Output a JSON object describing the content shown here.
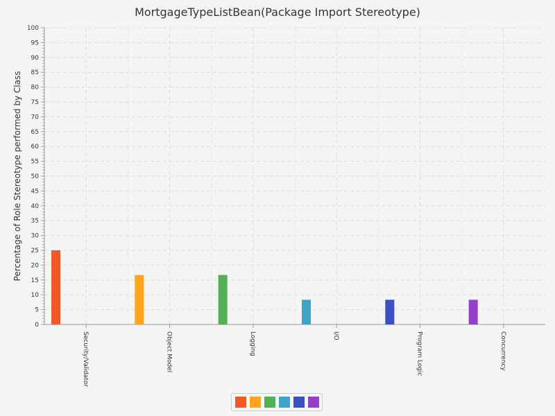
{
  "chart_data": {
    "type": "bar",
    "title": "MortgageTypeListBean(Package Import Stereotype)",
    "xlabel": "",
    "ylabel": "Percentage of Role Stereotype performed by Class",
    "ylim": [
      0,
      100
    ],
    "ytick_step": 5,
    "grid": true,
    "legend_position": "bottom",
    "categories": [
      "Security/Validator",
      "Object Model",
      "Logging",
      "I/O",
      "Program Logic",
      "Concurrency"
    ],
    "values": [
      25,
      16.67,
      16.67,
      8.33,
      8.33,
      8.33
    ],
    "colors": [
      "#f05a28",
      "#ffa41b",
      "#52b152",
      "#3fa4c9",
      "#3b50c4",
      "#9440c9"
    ]
  }
}
